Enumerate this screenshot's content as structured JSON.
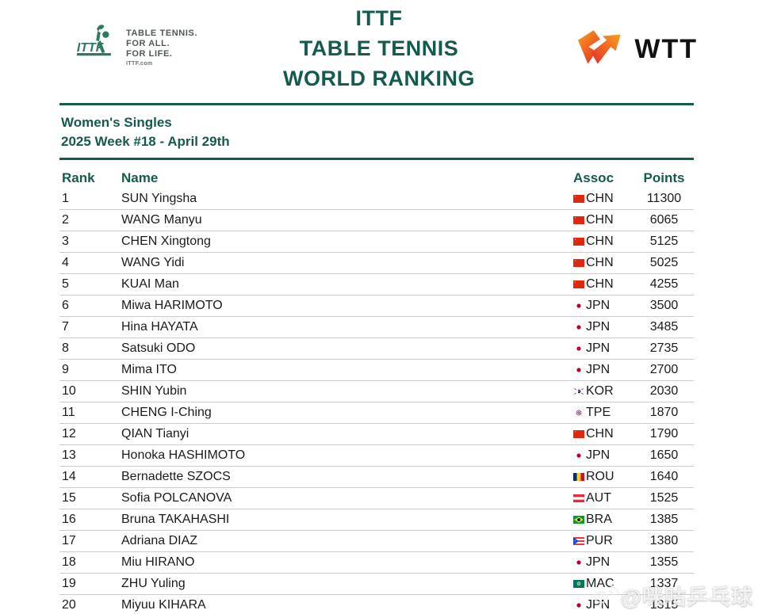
{
  "header": {
    "ittf_logo": {
      "tagline_line1": "TABLE TENNIS.",
      "tagline_line2": "FOR ALL.",
      "tagline_line3": "FOR LIFE.",
      "site": "ITTF.com"
    },
    "title_lines": [
      "ITTF",
      "TABLE TENNIS",
      "WORLD RANKING"
    ],
    "wtt_logo_text": "WTT"
  },
  "subtitle": {
    "event": "Women's Singles",
    "week": "2025 Week #18 - April 29th"
  },
  "table": {
    "columns": [
      "Rank",
      "Name",
      "Assoc",
      "Points"
    ],
    "rows": [
      {
        "rank": "1",
        "name": "SUN Yingsha",
        "assoc": "CHN",
        "points": "11300"
      },
      {
        "rank": "2",
        "name": "WANG Manyu",
        "assoc": "CHN",
        "points": "6065"
      },
      {
        "rank": "3",
        "name": "CHEN Xingtong",
        "assoc": "CHN",
        "points": "5125"
      },
      {
        "rank": "4",
        "name": "WANG Yidi",
        "assoc": "CHN",
        "points": "5025"
      },
      {
        "rank": "5",
        "name": "KUAI Man",
        "assoc": "CHN",
        "points": "4255"
      },
      {
        "rank": "6",
        "name": "Miwa HARIMOTO",
        "assoc": "JPN",
        "points": "3500"
      },
      {
        "rank": "7",
        "name": "Hina HAYATA",
        "assoc": "JPN",
        "points": "3485"
      },
      {
        "rank": "8",
        "name": "Satsuki ODO",
        "assoc": "JPN",
        "points": "2735"
      },
      {
        "rank": "9",
        "name": "Mima ITO",
        "assoc": "JPN",
        "points": "2700"
      },
      {
        "rank": "10",
        "name": "SHIN Yubin",
        "assoc": "KOR",
        "points": "2030"
      },
      {
        "rank": "11",
        "name": "CHENG I-Ching",
        "assoc": "TPE",
        "points": "1870"
      },
      {
        "rank": "12",
        "name": "QIAN Tianyi",
        "assoc": "CHN",
        "points": "1790"
      },
      {
        "rank": "13",
        "name": "Honoka HASHIMOTO",
        "assoc": "JPN",
        "points": "1650"
      },
      {
        "rank": "14",
        "name": "Bernadette SZOCS",
        "assoc": "ROU",
        "points": "1640"
      },
      {
        "rank": "15",
        "name": "Sofia POLCANOVA",
        "assoc": "AUT",
        "points": "1525"
      },
      {
        "rank": "16",
        "name": "Bruna TAKAHASHI",
        "assoc": "BRA",
        "points": "1385"
      },
      {
        "rank": "17",
        "name": "Adriana DIAZ",
        "assoc": "PUR",
        "points": "1380"
      },
      {
        "rank": "18",
        "name": "Miu HIRANO",
        "assoc": "JPN",
        "points": "1355"
      },
      {
        "rank": "19",
        "name": "ZHU Yuling",
        "assoc": "MAC",
        "points": "1337"
      },
      {
        "rank": "20",
        "name": "Miyuu KIHARA",
        "assoc": "JPN",
        "points": "1315"
      }
    ]
  },
  "watermark": {
    "text": "@咪咕乒乓球"
  },
  "colors": {
    "accent_green": "#155A4E",
    "row_text": "#1B1B1B",
    "separator": "#CBCBCB",
    "wtt_orange": "#F9A01B",
    "wtt_red": "#E8342A",
    "ittf_logo_green": "#2F7A5C"
  }
}
